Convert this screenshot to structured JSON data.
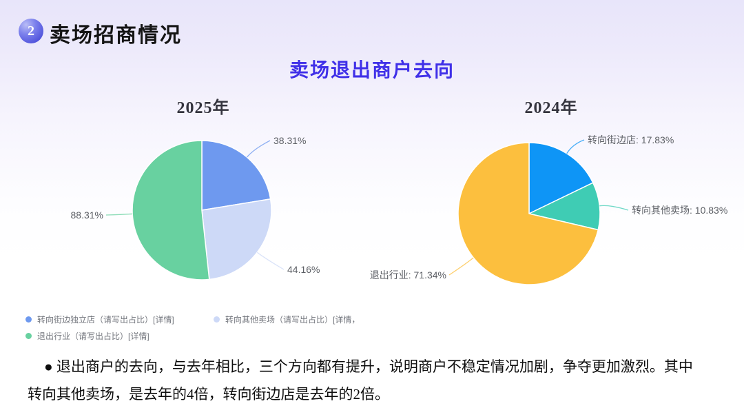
{
  "header": {
    "badge_number": "2",
    "title": "卖场招商情况"
  },
  "subtitle": "卖场退出商户去向",
  "colors": {
    "subtitle_accent": "#4030e8",
    "badge_accent": "#5a5ee2",
    "pie_label_text": "#5b5e64",
    "legend_text": "#73767d"
  },
  "chart_data": [
    {
      "type": "pie",
      "title": "2025年",
      "legend_position": "bottom-left",
      "start_angle": "top",
      "direction": "clockwise",
      "slices": [
        {
          "name": "转向街边独立店（请写出占比）",
          "value": 38.31,
          "label": "38.31%",
          "color": "#6e99ef"
        },
        {
          "name": "转向其他卖场（请写出占比）",
          "value": 44.16,
          "label": "44.16%",
          "color": "#cdd9f7"
        },
        {
          "name": "退出行业（请写出占比）",
          "value": 88.31,
          "label": "88.31%",
          "color": "#68d1a0"
        }
      ]
    },
    {
      "type": "pie",
      "title": "2024年",
      "start_angle": "top",
      "direction": "clockwise",
      "slices": [
        {
          "name": "转向街边店",
          "value": 17.83,
          "label": "转向街边店: 17.83%",
          "color": "#0e95f6"
        },
        {
          "name": "转向其他卖场",
          "value": 10.83,
          "label": "转向其他卖场: 10.83%",
          "color": "#3fccb4"
        },
        {
          "name": "退出行业",
          "value": 71.34,
          "label": "退出行业: 71.34%",
          "color": "#fcbf3e"
        }
      ]
    }
  ],
  "legend": {
    "items": [
      {
        "label": "转向街边独立店（请写出占比）[详情]",
        "color": "#6e99ef"
      },
      {
        "label": "转向其他卖场（请写出占比）[详情，",
        "color": "#cdd9f7"
      },
      {
        "label": "退出行业（请写出占比）[详情]",
        "color": "#68d1a0"
      }
    ]
  },
  "notes": {
    "line1": "● 退出商户的去向，与去年相比，三个方向都有提升，说明商户不稳定情况加剧，争夺更加激烈。其中",
    "line2": "转向其他卖场，是去年的4倍，转向街边店是去年的2倍。"
  }
}
